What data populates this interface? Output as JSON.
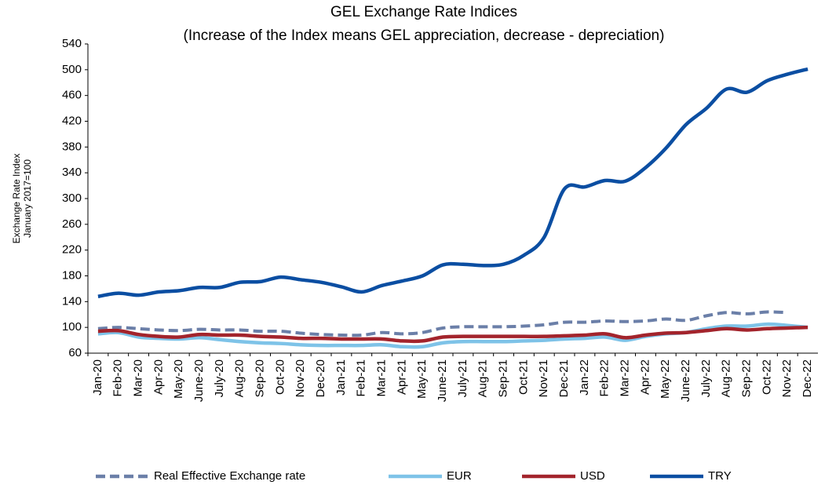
{
  "chart_data": {
    "type": "line",
    "title": "GEL  Exchange Rate Indices",
    "subtitle": "(Increase of the Index means GEL appreciation, decrease - depreciation)",
    "y_label": [
      "Exchange Rate Index",
      "January 2017=100"
    ],
    "categories": [
      "Jan-20",
      "Feb-20",
      "Mar-20",
      "Apr-20",
      "May-20",
      "June-20",
      "July-20",
      "Aug-20",
      "Sep-20",
      "Oct-20",
      "Nov-20",
      "Dec-20",
      "Jan-21",
      "Feb-21",
      "Mar-21",
      "Apr-21",
      "May-21",
      "June-21",
      "July-21",
      "Aug-21",
      "Sep-21",
      "Oct-21",
      "Nov-21",
      "Dec-21",
      "Jan-22",
      "Feb-22",
      "Mar-22",
      "Apr-22",
      "May-22",
      "June-22",
      "July-22",
      "Aug-22",
      "Sep-22",
      "Oct-22",
      "Nov-22",
      "Dec-22"
    ],
    "series": [
      {
        "name": "Real Effective Exchange rate",
        "color": "#6b7fa8",
        "dashed": true,
        "values": [
          98,
          100,
          98,
          96,
          95,
          97,
          96,
          96,
          94,
          94,
          91,
          89,
          88,
          88,
          92,
          90,
          92,
          99,
          101,
          101,
          101,
          102,
          104,
          108,
          108,
          110,
          109,
          110,
          113,
          111,
          118,
          123,
          121,
          124,
          123,
          null
        ]
      },
      {
        "name": "EUR",
        "color": "#7ec3e8",
        "values": [
          90,
          92,
          85,
          83,
          82,
          84,
          81,
          78,
          76,
          75,
          73,
          72,
          72,
          72,
          73,
          70,
          70,
          76,
          78,
          78,
          78,
          79,
          80,
          82,
          83,
          85,
          80,
          86,
          90,
          92,
          98,
          102,
          102,
          105,
          103,
          100
        ]
      },
      {
        "name": "USD",
        "color": "#a3242c",
        "values": [
          94,
          95,
          89,
          86,
          85,
          89,
          88,
          88,
          86,
          85,
          83,
          83,
          82,
          82,
          82,
          79,
          79,
          85,
          86,
          86,
          86,
          86,
          86,
          87,
          88,
          90,
          84,
          88,
          91,
          92,
          95,
          98,
          96,
          98,
          99,
          100
        ]
      },
      {
        "name": "TRY",
        "color": "#0b4ea2",
        "values": [
          148,
          153,
          150,
          155,
          157,
          162,
          162,
          170,
          171,
          178,
          174,
          170,
          163,
          155,
          165,
          172,
          180,
          197,
          198,
          196,
          198,
          212,
          240,
          315,
          318,
          328,
          327,
          348,
          378,
          415,
          440,
          470,
          465,
          483,
          493,
          501
        ]
      }
    ],
    "ylim": [
      60,
      540
    ],
    "yticks": [
      60,
      100,
      140,
      180,
      220,
      260,
      300,
      340,
      380,
      420,
      460,
      500,
      540
    ],
    "grid": false,
    "legend": "bottom"
  }
}
